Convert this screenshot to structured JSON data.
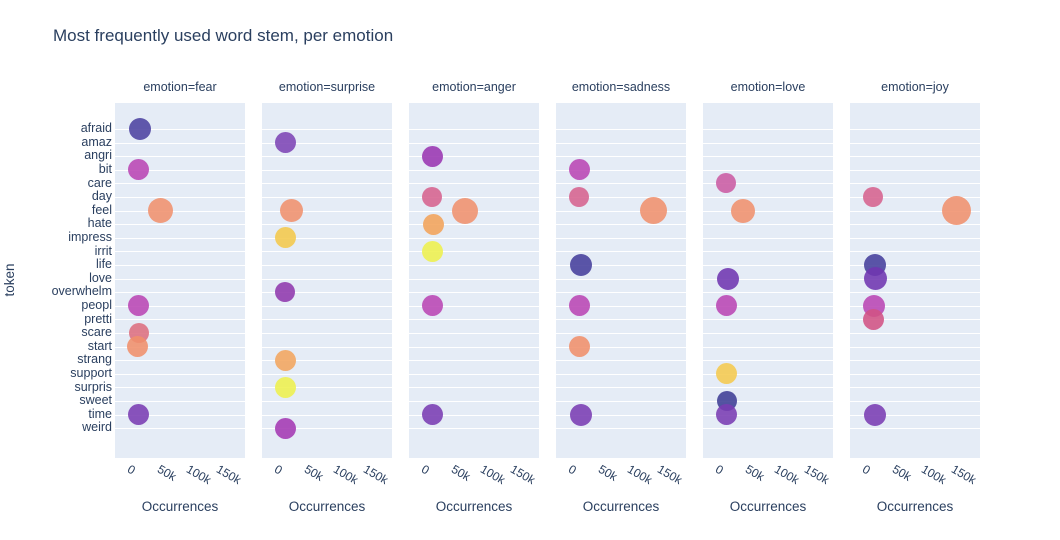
{
  "title": "Most frequently used word stem, per emotion",
  "colors": {
    "background": "#ffffff",
    "plot_background": "#e5ecf6",
    "grid": "#ffffff",
    "text": "#2a3f5f"
  },
  "chart_data": {
    "type": "scatter",
    "facet_col": "emotion",
    "xlabel": "Occurrences",
    "ylabel": "token",
    "legend": "none",
    "grid": "horizontal",
    "x_range": [
      -36000,
      185000
    ],
    "x_ticks": [
      {
        "value": 0,
        "label": "0"
      },
      {
        "value": 50000,
        "label": "50k"
      },
      {
        "value": 100000,
        "label": "100k"
      },
      {
        "value": 150000,
        "label": "150k"
      }
    ],
    "y_categories": [
      "afraid",
      "amaz",
      "angri",
      "bit",
      "care",
      "day",
      "feel",
      "hate",
      "impress",
      "irrit",
      "life",
      "love",
      "overwhelm",
      "peopl",
      "pretti",
      "scare",
      "start",
      "strang",
      "support",
      "surpris",
      "sweet",
      "time",
      "weird"
    ],
    "token_colors": {
      "afraid": "#4c42a0",
      "amaz": "#7d44b5",
      "angri": "#9a36b2",
      "bit": "#ba46b4",
      "care": "#cb5ba3",
      "day": "#d6628e",
      "feel": "#f0916d",
      "hate": "#f2a35a",
      "impress": "#f4c84b",
      "irrit": "#eef04d",
      "life": "#463f9c",
      "love": "#6f36b0",
      "overwhelm": "#9038ad",
      "peopl": "#ba46b4",
      "pretti": "#d25284",
      "scare": "#dd6e7f",
      "start": "#f0906b",
      "strang": "#f3a55e",
      "support": "#f5c94e",
      "surpris": "#eef04d",
      "sweet": "#3f3d95",
      "time": "#7a3cb3",
      "weird": "#a438b3"
    },
    "facets": [
      {
        "label": "emotion=fear",
        "emotion": "fear",
        "points": [
          {
            "token": "afraid",
            "occurrences": 6000,
            "size": 22
          },
          {
            "token": "bit",
            "occurrences": 4000,
            "size": 21
          },
          {
            "token": "feel",
            "occurrences": 42000,
            "size": 25
          },
          {
            "token": "peopl",
            "occurrences": 4000,
            "size": 21
          },
          {
            "token": "scare",
            "occurrences": 5000,
            "size": 20
          },
          {
            "token": "start",
            "occurrences": 3000,
            "size": 21
          },
          {
            "token": "time",
            "occurrences": 5000,
            "size": 21
          }
        ]
      },
      {
        "label": "emotion=surprise",
        "emotion": "surprise",
        "points": [
          {
            "token": "amaz",
            "occurrences": 5000,
            "size": 21
          },
          {
            "token": "feel",
            "occurrences": 14000,
            "size": 23
          },
          {
            "token": "impress",
            "occurrences": 4000,
            "size": 21
          },
          {
            "token": "overwhelm",
            "occurrences": 3000,
            "size": 20
          },
          {
            "token": "strang",
            "occurrences": 4000,
            "size": 21
          },
          {
            "token": "surpris",
            "occurrences": 5000,
            "size": 21
          },
          {
            "token": "weird",
            "occurrences": 4000,
            "size": 21
          }
        ]
      },
      {
        "label": "emotion=anger",
        "emotion": "anger",
        "points": [
          {
            "token": "angri",
            "occurrences": 5000,
            "size": 21
          },
          {
            "token": "day",
            "occurrences": 4000,
            "size": 20
          },
          {
            "token": "feel",
            "occurrences": 59000,
            "size": 26
          },
          {
            "token": "hate",
            "occurrences": 6000,
            "size": 21
          },
          {
            "token": "irrit",
            "occurrences": 5000,
            "size": 21
          },
          {
            "token": "peopl",
            "occurrences": 5000,
            "size": 21
          },
          {
            "token": "time",
            "occurrences": 5000,
            "size": 21
          }
        ]
      },
      {
        "label": "emotion=sadness",
        "emotion": "sadness",
        "points": [
          {
            "token": "bit",
            "occurrences": 5000,
            "size": 21
          },
          {
            "token": "day",
            "occurrences": 4000,
            "size": 20
          },
          {
            "token": "feel",
            "occurrences": 129000,
            "size": 27
          },
          {
            "token": "life",
            "occurrences": 6000,
            "size": 22
          },
          {
            "token": "peopl",
            "occurrences": 5000,
            "size": 21
          },
          {
            "token": "start",
            "occurrences": 4000,
            "size": 21
          },
          {
            "token": "time",
            "occurrences": 6000,
            "size": 22
          }
        ]
      },
      {
        "label": "emotion=love",
        "emotion": "love",
        "points": [
          {
            "token": "care",
            "occurrences": 4000,
            "size": 20
          },
          {
            "token": "feel",
            "occurrences": 33000,
            "size": 24
          },
          {
            "token": "love",
            "occurrences": 7000,
            "size": 22
          },
          {
            "token": "peopl",
            "occurrences": 4000,
            "size": 21
          },
          {
            "token": "support",
            "occurrences": 4000,
            "size": 21
          },
          {
            "token": "sweet",
            "occurrences": 5000,
            "size": 20
          },
          {
            "token": "time",
            "occurrences": 5000,
            "size": 21
          }
        ]
      },
      {
        "label": "emotion=joy",
        "emotion": "joy",
        "points": [
          {
            "token": "day",
            "occurrences": 4000,
            "size": 20
          },
          {
            "token": "feel",
            "occurrences": 145000,
            "size": 29
          },
          {
            "token": "life",
            "occurrences": 7000,
            "size": 22
          },
          {
            "token": "love",
            "occurrences": 8000,
            "size": 23
          },
          {
            "token": "peopl",
            "occurrences": 5000,
            "size": 22
          },
          {
            "token": "pretti",
            "occurrences": 5000,
            "size": 21
          },
          {
            "token": "time",
            "occurrences": 6000,
            "size": 22
          }
        ]
      }
    ]
  }
}
